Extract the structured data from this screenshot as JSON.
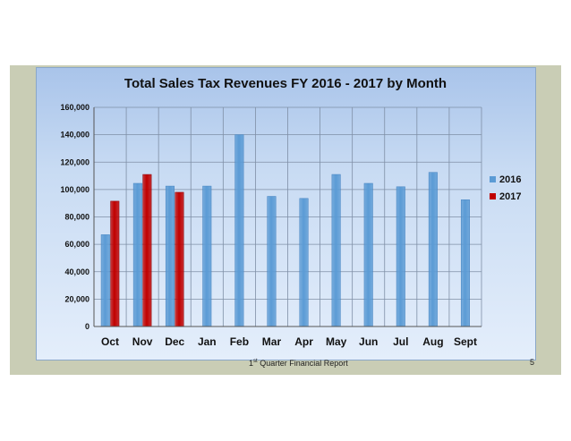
{
  "slide": {
    "footer_ordinal": "1",
    "footer_suffix": "st",
    "footer_rest": " Quarter Financial Report",
    "page_number": "5"
  },
  "colors": {
    "series_2016": "#5b9bd5",
    "series_2017": "#c00000",
    "slide_background": "#c9cdb5",
    "panel_border": "#8aa7c8"
  },
  "chart_data": {
    "type": "bar",
    "title": "Total Sales Tax Revenues FY 2016 - 2017 by Month",
    "xlabel": "",
    "ylabel": "",
    "ylim": [
      0,
      160000
    ],
    "yticks": [
      0,
      20000,
      40000,
      60000,
      80000,
      100000,
      120000,
      140000,
      160000
    ],
    "ytick_labels": [
      "0",
      "20,000",
      "40,000",
      "60,000",
      "80,000",
      "100,000",
      "120,000",
      "140,000",
      "160,000"
    ],
    "grid": true,
    "legend_position": "right",
    "categories": [
      "Oct",
      "Nov",
      "Dec",
      "Jan",
      "Feb",
      "Mar",
      "Apr",
      "May",
      "Jun",
      "Jul",
      "Aug",
      "Sept"
    ],
    "series": [
      {
        "name": "2016",
        "values": [
          67000,
          104500,
          102500,
          102500,
          140000,
          95000,
          93500,
          111000,
          104500,
          102000,
          112500,
          92500
        ]
      },
      {
        "name": "2017",
        "values": [
          91500,
          111000,
          98000,
          null,
          null,
          null,
          null,
          null,
          null,
          null,
          null,
          null
        ]
      }
    ]
  }
}
